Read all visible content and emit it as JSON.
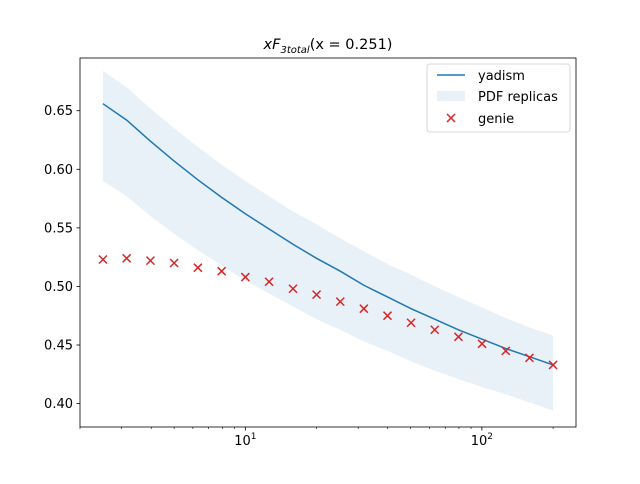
{
  "chart_data": {
    "type": "line",
    "title": {
      "main": "xF",
      "sub_num": "3",
      "sub_text": "total",
      "suffix": "(x = 0.251)"
    },
    "xscale": "log",
    "xlim": [
      2.0,
      250
    ],
    "ylim": [
      0.38,
      0.695
    ],
    "grid": false,
    "legend_placement": "top-right",
    "x_ticks": [
      {
        "value": 10,
        "base": "10",
        "exp": "1"
      },
      {
        "value": 100,
        "base": "10",
        "exp": "2"
      }
    ],
    "y_ticks": [
      {
        "value": 0.4,
        "label": "0.40"
      },
      {
        "value": 0.45,
        "label": "0.45"
      },
      {
        "value": 0.5,
        "label": "0.50"
      },
      {
        "value": 0.55,
        "label": "0.55"
      },
      {
        "value": 0.6,
        "label": "0.60"
      },
      {
        "value": 0.65,
        "label": "0.65"
      }
    ],
    "x": [
      2.5,
      3.15,
      3.97,
      5.0,
      6.3,
      7.94,
      10.0,
      12.6,
      15.9,
      20.0,
      25.2,
      31.7,
      39.9,
      50.2,
      63.2,
      79.6,
      100.2,
      126.2,
      158.9,
      200.0
    ],
    "series": [
      {
        "name": "yadism",
        "kind": "line",
        "color": "#1f77b4",
        "values": [
          0.656,
          0.642,
          0.624,
          0.607,
          0.591,
          0.576,
          0.562,
          0.549,
          0.536,
          0.524,
          0.513,
          0.501,
          0.491,
          0.481,
          0.472,
          0.463,
          0.455,
          0.447,
          0.44,
          0.433
        ]
      },
      {
        "name": "PDF replicas",
        "kind": "band",
        "color": "#1f77b4",
        "lower": [
          0.59,
          0.577,
          0.56,
          0.545,
          0.531,
          0.518,
          0.505,
          0.494,
          0.483,
          0.472,
          0.463,
          0.453,
          0.445,
          0.436,
          0.428,
          0.421,
          0.414,
          0.408,
          0.401,
          0.394
        ],
        "upper": [
          0.684,
          0.67,
          0.652,
          0.635,
          0.619,
          0.604,
          0.59,
          0.577,
          0.564,
          0.553,
          0.541,
          0.53,
          0.519,
          0.51,
          0.5,
          0.491,
          0.482,
          0.473,
          0.465,
          0.458
        ]
      },
      {
        "name": "genie",
        "kind": "scatter",
        "marker": "x",
        "color": "#d62728",
        "values": [
          0.523,
          0.524,
          0.522,
          0.52,
          0.516,
          0.513,
          0.508,
          0.504,
          0.498,
          0.493,
          0.487,
          0.481,
          0.475,
          0.469,
          0.463,
          0.457,
          0.451,
          0.445,
          0.439,
          0.433
        ]
      }
    ]
  }
}
